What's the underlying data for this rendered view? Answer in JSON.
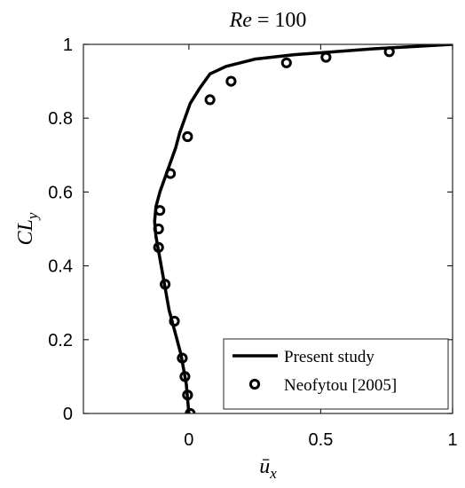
{
  "chart_data": {
    "type": "line",
    "title": {
      "symbol": "Re",
      "rest": " = 100"
    },
    "xlabel": {
      "base": "ū",
      "subscript": "x"
    },
    "ylabel": {
      "base": "CL",
      "subscript": "y"
    },
    "xlim": [
      -0.4,
      1.0
    ],
    "ylim": [
      0.0,
      1.0
    ],
    "xticks": [
      0,
      0.5,
      1
    ],
    "xtick_labels": [
      "0",
      "0.5",
      "1"
    ],
    "yticks": [
      0,
      0.2,
      0.4,
      0.6,
      0.8,
      1
    ],
    "ytick_labels": [
      "0",
      "0.2",
      "0.4",
      "0.6",
      "0.8",
      "1"
    ],
    "grid": false,
    "legend_position": "bottom-right",
    "series": [
      {
        "name": "Present study",
        "style": "solid-line",
        "color": "#000000",
        "x": [
          0.0,
          -0.005,
          -0.01,
          -0.02,
          -0.03,
          -0.045,
          -0.06,
          -0.075,
          -0.085,
          -0.095,
          -0.105,
          -0.115,
          -0.125,
          -0.13,
          -0.125,
          -0.11,
          -0.09,
          -0.07,
          -0.05,
          -0.035,
          -0.015,
          0.005,
          0.04,
          0.08,
          0.14,
          0.25,
          0.4,
          0.55,
          0.7,
          0.85,
          1.0
        ],
        "y": [
          0.0,
          0.04,
          0.08,
          0.12,
          0.16,
          0.2,
          0.24,
          0.28,
          0.32,
          0.36,
          0.4,
          0.44,
          0.48,
          0.52,
          0.56,
          0.6,
          0.64,
          0.68,
          0.72,
          0.76,
          0.8,
          0.84,
          0.88,
          0.92,
          0.94,
          0.96,
          0.972,
          0.98,
          0.988,
          0.994,
          1.0
        ]
      },
      {
        "name": "Neofytou [2005]",
        "style": "open-circle",
        "color": "#000000",
        "x": [
          0.005,
          -0.005,
          -0.015,
          -0.025,
          -0.055,
          -0.09,
          -0.115,
          -0.115,
          -0.11,
          -0.07,
          -0.005,
          0.08,
          0.16,
          0.37,
          0.52,
          0.76
        ],
        "y": [
          0.0,
          0.05,
          0.1,
          0.15,
          0.25,
          0.35,
          0.45,
          0.5,
          0.55,
          0.65,
          0.75,
          0.85,
          0.9,
          0.95,
          0.965,
          0.98
        ]
      }
    ]
  }
}
